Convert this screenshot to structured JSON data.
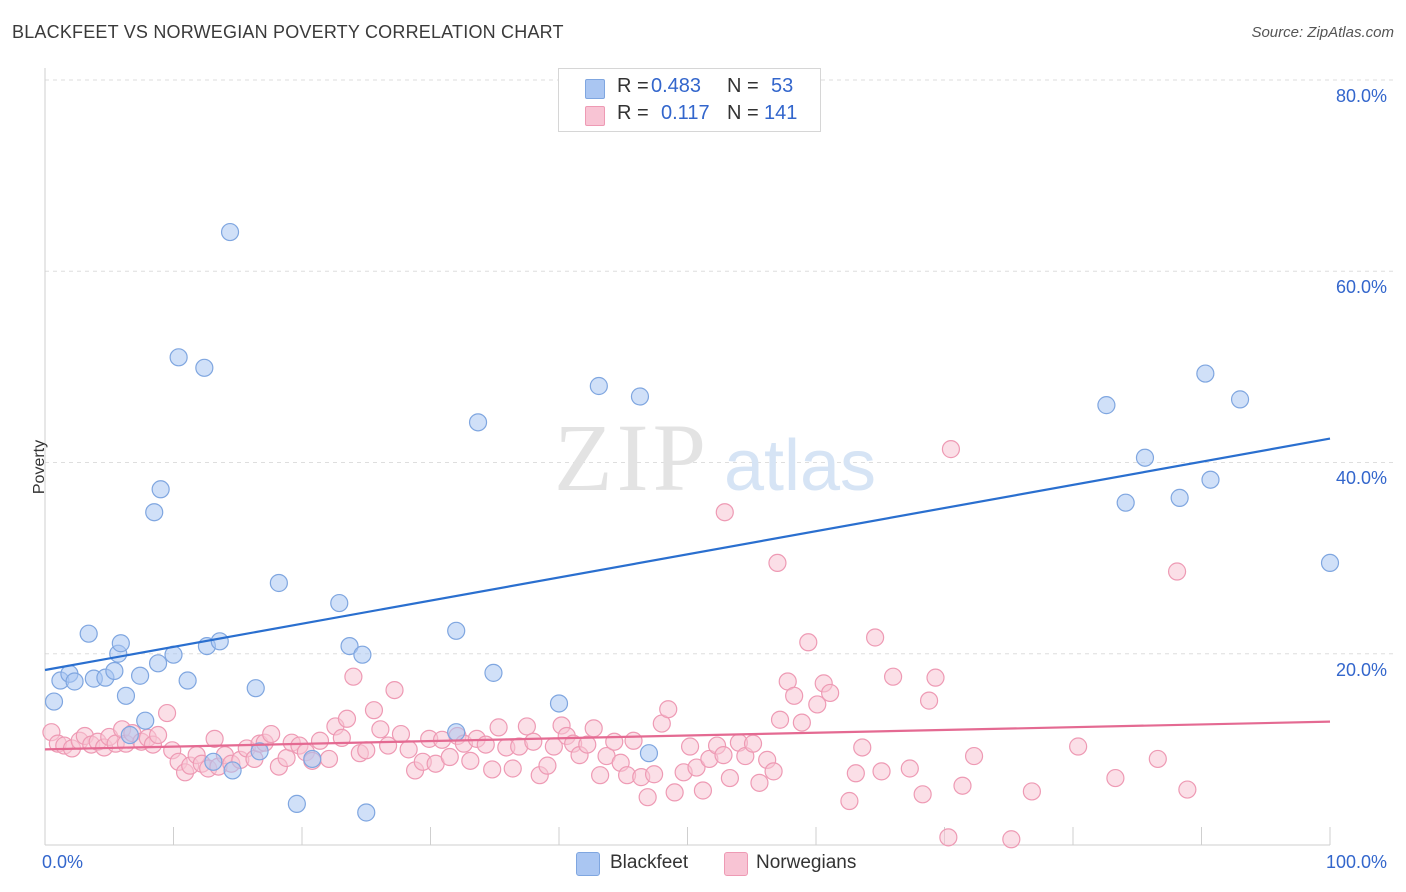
{
  "title": "BLACKFEET VS NORWEGIAN POVERTY CORRELATION CHART",
  "source": "Source: ZipAtlas.com",
  "watermark": {
    "zip": "ZIP",
    "atlas": "atlas"
  },
  "legend": {
    "rows": [
      {
        "r_label": "R =",
        "r_value": "0.483",
        "n_label": "N =",
        "n_value": "53",
        "color": "#aac6f2",
        "border": "#7fa6e0"
      },
      {
        "r_label": "R =",
        "r_value": "0.117",
        "n_label": "N =",
        "n_value": "141",
        "color": "#f8c4d4",
        "border": "#ee9ab4"
      }
    ]
  },
  "bottom_legend": [
    {
      "label": "Blackfeet",
      "color": "#aac6f2",
      "border": "#7fa6e0"
    },
    {
      "label": "Norwegians",
      "color": "#f8c4d4",
      "border": "#ee9ab4"
    }
  ],
  "chart_data": {
    "type": "scatter",
    "xlabel": "",
    "ylabel": "Poverty",
    "xlim": [
      0,
      100
    ],
    "ylim": [
      0,
      80
    ],
    "x_tick_labels": [
      "0.0%",
      "100.0%"
    ],
    "y_tick_labels": [
      "20.0%",
      "40.0%",
      "60.0%",
      "80.0%"
    ],
    "y_tick_values": [
      20,
      40,
      60,
      80
    ],
    "grid": true,
    "series": [
      {
        "name": "Blackfeet",
        "color": "#7fa6e0",
        "fill": "#aac6f2",
        "line_color": "#2a6fcf",
        "trend": [
          [
            0,
            18.3
          ],
          [
            100,
            42.5
          ]
        ],
        "points": [
          [
            0.7,
            15.0
          ],
          [
            1.2,
            17.2
          ],
          [
            1.9,
            17.9
          ],
          [
            2.3,
            17.1
          ],
          [
            3.4,
            22.1
          ],
          [
            3.8,
            17.4
          ],
          [
            4.7,
            17.5
          ],
          [
            5.4,
            18.2
          ],
          [
            5.7,
            20.0
          ],
          [
            5.9,
            21.1
          ],
          [
            6.3,
            15.6
          ],
          [
            6.6,
            11.5
          ],
          [
            7.4,
            17.7
          ],
          [
            7.8,
            13.0
          ],
          [
            8.5,
            34.8
          ],
          [
            8.8,
            19.0
          ],
          [
            9.0,
            37.2
          ],
          [
            10.0,
            19.9
          ],
          [
            10.4,
            51.0
          ],
          [
            11.1,
            17.2
          ],
          [
            12.4,
            49.9
          ],
          [
            12.6,
            20.8
          ],
          [
            13.1,
            8.7
          ],
          [
            13.6,
            21.3
          ],
          [
            14.4,
            64.1
          ],
          [
            14.6,
            7.8
          ],
          [
            16.4,
            16.4
          ],
          [
            16.7,
            9.8
          ],
          [
            18.2,
            27.4
          ],
          [
            19.6,
            4.3
          ],
          [
            20.8,
            9.0
          ],
          [
            22.9,
            25.3
          ],
          [
            23.7,
            20.8
          ],
          [
            24.7,
            19.9
          ],
          [
            25.0,
            3.4
          ],
          [
            32.0,
            22.4
          ],
          [
            32.0,
            11.8
          ],
          [
            33.7,
            44.2
          ],
          [
            34.9,
            18.0
          ],
          [
            40.0,
            14.8
          ],
          [
            43.1,
            48.0
          ],
          [
            46.3,
            46.9
          ],
          [
            47.0,
            9.6
          ],
          [
            82.6,
            46.0
          ],
          [
            84.1,
            35.8
          ],
          [
            85.6,
            40.5
          ],
          [
            88.3,
            36.3
          ],
          [
            90.3,
            49.3
          ],
          [
            90.7,
            38.2
          ],
          [
            93.0,
            46.6
          ],
          [
            100.0,
            29.5
          ]
        ]
      },
      {
        "name": "Norwegians",
        "color": "#ee9ab4",
        "fill": "#f8c4d4",
        "line_color": "#e46a92",
        "trend": [
          [
            0,
            10.0
          ],
          [
            100,
            12.9
          ]
        ],
        "points": [
          [
            0.5,
            11.8
          ],
          [
            1.0,
            10.6
          ],
          [
            1.5,
            10.4
          ],
          [
            2.1,
            10.1
          ],
          [
            2.7,
            10.9
          ],
          [
            3.1,
            11.4
          ],
          [
            3.6,
            10.5
          ],
          [
            4.1,
            10.8
          ],
          [
            4.6,
            10.2
          ],
          [
            5.0,
            11.3
          ],
          [
            5.5,
            10.6
          ],
          [
            6.0,
            12.1
          ],
          [
            6.3,
            10.6
          ],
          [
            6.8,
            11.7
          ],
          [
            7.5,
            10.8
          ],
          [
            8.0,
            11.2
          ],
          [
            8.4,
            10.5
          ],
          [
            8.8,
            11.5
          ],
          [
            9.5,
            13.8
          ],
          [
            9.9,
            9.9
          ],
          [
            10.4,
            8.7
          ],
          [
            10.9,
            7.6
          ],
          [
            11.3,
            8.3
          ],
          [
            11.8,
            9.4
          ],
          [
            12.2,
            8.5
          ],
          [
            12.7,
            8.0
          ],
          [
            13.2,
            11.1
          ],
          [
            13.5,
            8.2
          ],
          [
            14.0,
            9.4
          ],
          [
            14.5,
            8.5
          ],
          [
            15.2,
            8.9
          ],
          [
            15.7,
            10.1
          ],
          [
            16.3,
            9.0
          ],
          [
            16.7,
            10.6
          ],
          [
            17.1,
            10.7
          ],
          [
            17.6,
            11.6
          ],
          [
            18.2,
            8.2
          ],
          [
            18.8,
            9.1
          ],
          [
            19.2,
            10.7
          ],
          [
            19.8,
            10.4
          ],
          [
            20.3,
            9.7
          ],
          [
            20.8,
            8.8
          ],
          [
            21.4,
            10.9
          ],
          [
            22.1,
            9.0
          ],
          [
            22.6,
            12.4
          ],
          [
            23.1,
            11.2
          ],
          [
            23.5,
            13.2
          ],
          [
            24.0,
            17.6
          ],
          [
            24.5,
            9.6
          ],
          [
            25.0,
            9.9
          ],
          [
            25.6,
            14.1
          ],
          [
            26.1,
            12.1
          ],
          [
            26.7,
            10.4
          ],
          [
            27.2,
            16.2
          ],
          [
            27.7,
            11.6
          ],
          [
            28.3,
            10.0
          ],
          [
            28.8,
            7.8
          ],
          [
            29.4,
            8.7
          ],
          [
            29.9,
            11.1
          ],
          [
            30.4,
            8.5
          ],
          [
            30.9,
            11.0
          ],
          [
            31.5,
            9.2
          ],
          [
            32.1,
            11.4
          ],
          [
            32.6,
            10.6
          ],
          [
            33.1,
            8.8
          ],
          [
            33.6,
            11.1
          ],
          [
            34.3,
            10.5
          ],
          [
            34.8,
            7.9
          ],
          [
            35.3,
            12.3
          ],
          [
            35.9,
            10.2
          ],
          [
            36.4,
            8.0
          ],
          [
            36.9,
            10.3
          ],
          [
            37.5,
            12.4
          ],
          [
            38.0,
            10.8
          ],
          [
            38.5,
            7.3
          ],
          [
            39.1,
            8.3
          ],
          [
            39.6,
            10.3
          ],
          [
            40.2,
            12.5
          ],
          [
            40.6,
            11.4
          ],
          [
            41.1,
            10.6
          ],
          [
            41.6,
            9.4
          ],
          [
            42.2,
            10.5
          ],
          [
            42.7,
            12.2
          ],
          [
            43.2,
            7.3
          ],
          [
            43.7,
            9.3
          ],
          [
            44.3,
            10.8
          ],
          [
            44.8,
            8.6
          ],
          [
            45.3,
            7.3
          ],
          [
            45.8,
            10.9
          ],
          [
            46.4,
            7.1
          ],
          [
            46.9,
            5.0
          ],
          [
            47.4,
            7.4
          ],
          [
            48.0,
            12.7
          ],
          [
            48.5,
            14.2
          ],
          [
            49.0,
            5.5
          ],
          [
            49.7,
            7.6
          ],
          [
            50.2,
            10.3
          ],
          [
            50.7,
            8.1
          ],
          [
            51.2,
            5.7
          ],
          [
            51.7,
            9.0
          ],
          [
            52.3,
            10.4
          ],
          [
            52.8,
            9.4
          ],
          [
            53.3,
            7.0
          ],
          [
            54.0,
            10.7
          ],
          [
            54.5,
            9.3
          ],
          [
            55.1,
            10.6
          ],
          [
            55.6,
            6.5
          ],
          [
            56.2,
            8.9
          ],
          [
            56.7,
            7.7
          ],
          [
            57.2,
            13.1
          ],
          [
            57.8,
            17.1
          ],
          [
            58.3,
            15.6
          ],
          [
            58.9,
            12.8
          ],
          [
            59.4,
            21.2
          ],
          [
            60.1,
            14.7
          ],
          [
            60.6,
            16.9
          ],
          [
            61.1,
            15.9
          ],
          [
            62.6,
            4.6
          ],
          [
            63.1,
            7.5
          ],
          [
            63.6,
            10.2
          ],
          [
            64.6,
            21.7
          ],
          [
            65.1,
            7.7
          ],
          [
            66.0,
            17.6
          ],
          [
            67.3,
            8.0
          ],
          [
            68.3,
            5.3
          ],
          [
            68.8,
            15.1
          ],
          [
            69.3,
            17.5
          ],
          [
            70.3,
            0.8
          ],
          [
            70.5,
            41.4
          ],
          [
            71.4,
            6.2
          ],
          [
            72.3,
            9.3
          ],
          [
            75.2,
            0.6
          ],
          [
            76.8,
            5.6
          ],
          [
            80.4,
            10.3
          ],
          [
            83.3,
            7.0
          ],
          [
            86.6,
            9.0
          ],
          [
            88.1,
            28.6
          ],
          [
            88.9,
            5.8
          ],
          [
            52.9,
            34.8
          ],
          [
            57.0,
            29.5
          ]
        ]
      }
    ]
  }
}
